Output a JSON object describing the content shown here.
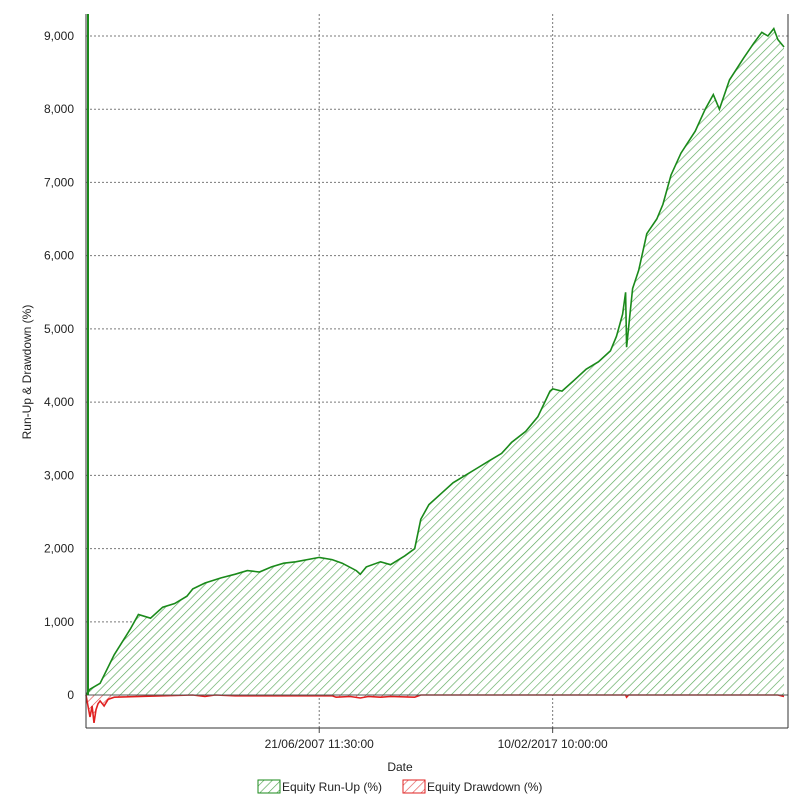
{
  "chart_data": {
    "type": "area",
    "xlabel": "Date",
    "ylabel": "Run-Up & Drawdown (%)",
    "ylim": [
      -450,
      9300
    ],
    "xlim": [
      "1997-11-01",
      "2026-11-01"
    ],
    "yticks": [
      0,
      1000,
      2000,
      3000,
      4000,
      5000,
      6000,
      7000,
      8000,
      9000
    ],
    "ytick_labels": [
      "0",
      "1,000",
      "2,000",
      "3,000",
      "4,000",
      "5,000",
      "6,000",
      "7,000",
      "8,000",
      "9,000"
    ],
    "xticks": [
      {
        "x": "2007-06-21",
        "label": "21/06/2007 11:30:00"
      },
      {
        "x": "2017-02-10",
        "label": "10/02/2017 10:00:00"
      }
    ],
    "grid": true,
    "legend_position": "bottom",
    "series": [
      {
        "name": "Equity Run-Up (%)",
        "color": "#1a8a1a",
        "x": [
          "1997-11-01",
          "1998-01-01",
          "1998-06-01",
          "1999-01-01",
          "1999-09-01",
          "2000-01-01",
          "2000-07-01",
          "2001-01-01",
          "2001-07-01",
          "2002-01-01",
          "2002-04-01",
          "2002-10-01",
          "2003-06-01",
          "2004-01-01",
          "2004-07-01",
          "2005-01-01",
          "2005-07-01",
          "2006-01-01",
          "2006-07-01",
          "2007-06-21",
          "2008-01-01",
          "2008-06-01",
          "2009-01-01",
          "2009-03-01",
          "2009-06-01",
          "2010-01-01",
          "2010-06-01",
          "2011-01-01",
          "2011-06-01",
          "2011-09-01",
          "2012-01-01",
          "2012-07-01",
          "2013-01-01",
          "2013-07-01",
          "2014-01-01",
          "2014-07-01",
          "2015-01-01",
          "2015-06-01",
          "2016-01-01",
          "2016-07-01",
          "2017-01-01",
          "2017-02-10",
          "2017-07-01",
          "2018-01-01",
          "2018-07-01",
          "2019-01-01",
          "2019-07-01",
          "2019-10-01",
          "2020-01-01",
          "2020-02-15",
          "2020-03-01",
          "2020-06-01",
          "2020-09-01",
          "2021-01-01",
          "2021-06-01",
          "2021-09-01",
          "2022-01-01",
          "2022-06-01",
          "2023-01-01",
          "2023-06-01",
          "2023-10-01",
          "2024-01-01",
          "2024-06-01",
          "2025-01-01",
          "2025-06-01",
          "2025-10-01",
          "2026-01-01",
          "2026-04-01",
          "2026-06-01",
          "2026-09-01"
        ],
        "values": [
          0,
          80,
          160,
          550,
          900,
          1100,
          1050,
          1200,
          1250,
          1350,
          1450,
          1530,
          1600,
          1650,
          1700,
          1680,
          1750,
          1800,
          1820,
          1880,
          1850,
          1800,
          1700,
          1650,
          1750,
          1820,
          1780,
          1900,
          2000,
          2400,
          2600,
          2750,
          2900,
          3000,
          3100,
          3200,
          3300,
          3450,
          3600,
          3800,
          4150,
          4180,
          4150,
          4300,
          4450,
          4550,
          4700,
          4900,
          5200,
          5500,
          4750,
          5550,
          5800,
          6300,
          6500,
          6700,
          7100,
          7400,
          7700,
          8000,
          8200,
          8000,
          8400,
          8700,
          8900,
          9050,
          9000,
          9100,
          8950,
          8850
        ]
      },
      {
        "name": "Equity Drawdown (%)",
        "color": "#e02020",
        "x": [
          "1997-11-01",
          "1998-01-01",
          "1998-02-01",
          "1998-03-01",
          "1998-04-01",
          "1998-05-01",
          "1998-06-01",
          "1998-08-01",
          "1998-10-01",
          "1999-01-01",
          "2002-04-01",
          "2002-10-01",
          "2003-03-01",
          "2004-01-01",
          "2008-01-01",
          "2008-03-01",
          "2008-10-01",
          "2009-03-01",
          "2009-07-01",
          "2010-01-01",
          "2010-06-01",
          "2011-06-01",
          "2011-09-01",
          "2020-02-15",
          "2020-03-01",
          "2020-04-01",
          "2026-06-01",
          "2026-09-01"
        ],
        "values": [
          0,
          -300,
          -150,
          -380,
          -200,
          -120,
          -80,
          -150,
          -60,
          -30,
          0,
          -20,
          0,
          -10,
          -10,
          -30,
          -20,
          -40,
          -20,
          -30,
          -20,
          -30,
          0,
          0,
          -30,
          0,
          0,
          -20
        ]
      }
    ]
  }
}
